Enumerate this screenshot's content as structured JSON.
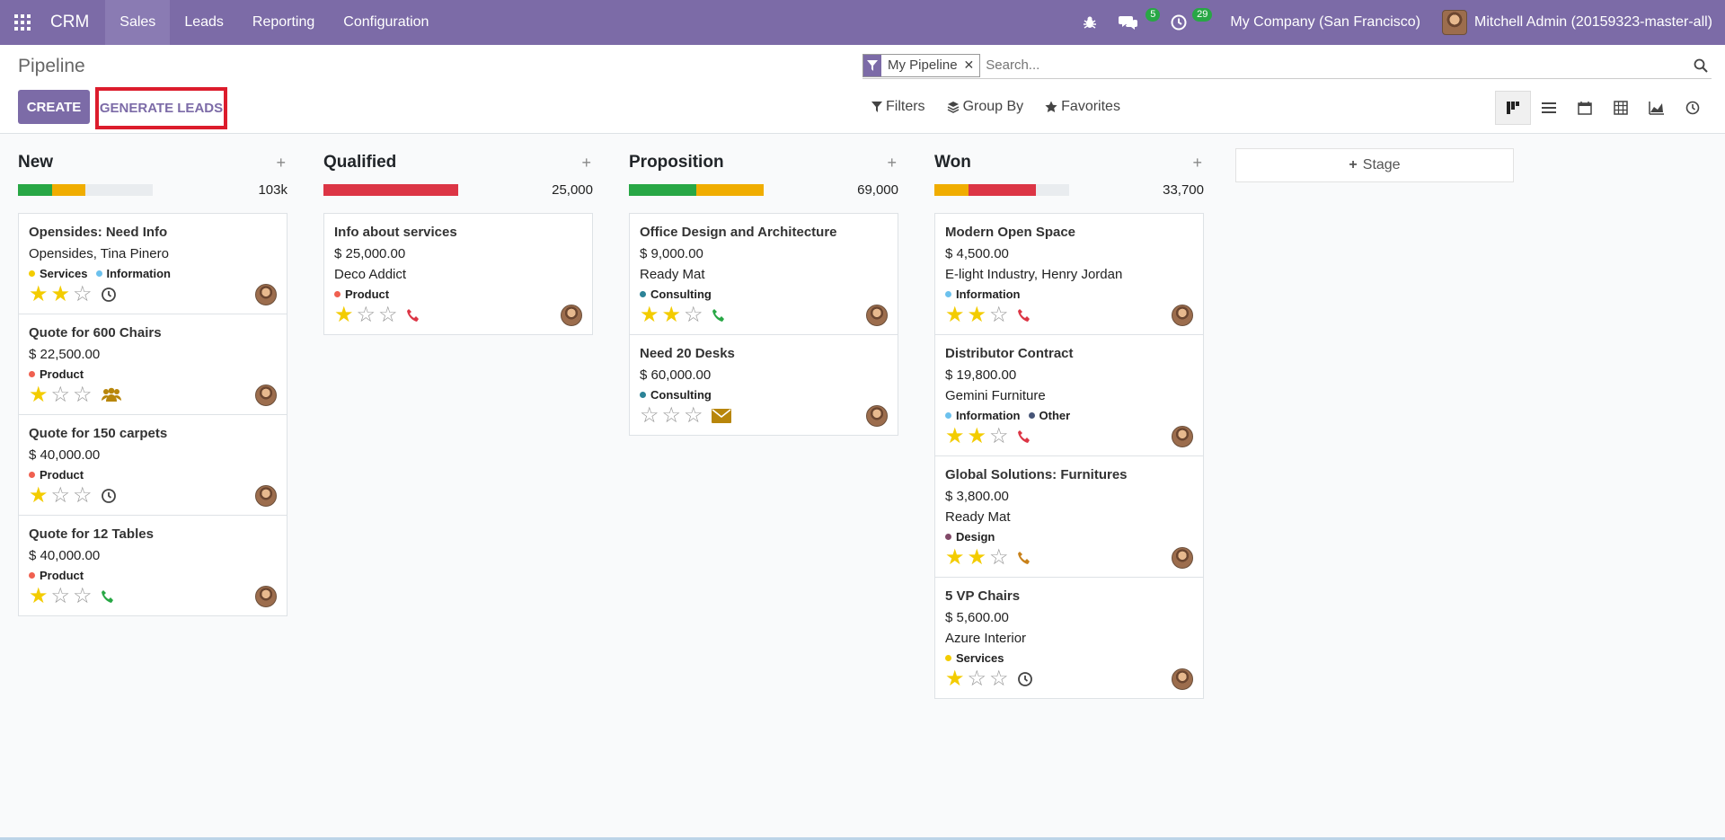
{
  "navbar": {
    "app_name": "CRM",
    "menu": [
      "Sales",
      "Leads",
      "Reporting",
      "Configuration"
    ],
    "messages_count": "5",
    "activities_count": "29",
    "company": "My Company (San Francisco)",
    "user": "Mitchell Admin (20159323-master-all)",
    "accent": "#7c6ba7"
  },
  "control": {
    "title": "Pipeline",
    "create_label": "CREATE",
    "generate_label": "GENERATE LEADS",
    "facet": "My Pipeline",
    "search_placeholder": "Search...",
    "filters_label": "Filters",
    "groupby_label": "Group By",
    "favorites_label": "Favorites"
  },
  "add_stage_label": "Stage",
  "columns": [
    {
      "name": "New",
      "total": "103k",
      "progress": [
        {
          "color": "#28a745",
          "pct": 25
        },
        {
          "color": "#f0ad00",
          "pct": 25
        }
      ],
      "cards": [
        {
          "title": "Opensides: Need Info",
          "lines": [
            "Opensides, Tina Pinero"
          ],
          "tags": [
            {
              "label": "Services",
              "color": "#f3cc00"
            },
            {
              "label": "Information",
              "color": "#6cc1ed"
            }
          ],
          "stars": 2,
          "activity": "clock"
        },
        {
          "title": "Quote for 600 Chairs",
          "lines": [
            "$ 22,500.00"
          ],
          "tags": [
            {
              "label": "Product",
              "color": "#f06050"
            }
          ],
          "stars": 1,
          "activity": "users"
        },
        {
          "title": "Quote for 150 carpets",
          "lines": [
            "$ 40,000.00"
          ],
          "tags": [
            {
              "label": "Product",
              "color": "#f06050"
            }
          ],
          "stars": 1,
          "activity": "clock"
        },
        {
          "title": "Quote for 12 Tables",
          "lines": [
            "$ 40,000.00"
          ],
          "tags": [
            {
              "label": "Product",
              "color": "#f06050"
            }
          ],
          "stars": 1,
          "activity": "phone-green"
        }
      ]
    },
    {
      "name": "Qualified",
      "total": "25,000",
      "progress": [
        {
          "color": "#dc3545",
          "pct": 100
        }
      ],
      "cards": [
        {
          "title": "Info about services",
          "lines": [
            "$ 25,000.00",
            "Deco Addict"
          ],
          "tags": [
            {
              "label": "Product",
              "color": "#f06050"
            }
          ],
          "stars": 1,
          "activity": "phone-red"
        }
      ]
    },
    {
      "name": "Proposition",
      "total": "69,000",
      "progress": [
        {
          "color": "#28a745",
          "pct": 50
        },
        {
          "color": "#f0ad00",
          "pct": 50
        }
      ],
      "cards": [
        {
          "title": "Office Design and Architecture",
          "lines": [
            "$ 9,000.00",
            "Ready Mat"
          ],
          "tags": [
            {
              "label": "Consulting",
              "color": "#2c8397"
            }
          ],
          "stars": 2,
          "activity": "phone-green"
        },
        {
          "title": "Need 20 Desks",
          "lines": [
            "$ 60,000.00"
          ],
          "tags": [
            {
              "label": "Consulting",
              "color": "#2c8397"
            }
          ],
          "stars": 0,
          "activity": "envelope"
        }
      ]
    },
    {
      "name": "Won",
      "total": "33,700",
      "progress": [
        {
          "color": "#f0ad00",
          "pct": 25
        },
        {
          "color": "#dc3545",
          "pct": 50
        }
      ],
      "cards": [
        {
          "title": "Modern Open Space",
          "lines": [
            "$ 4,500.00",
            "E-light Industry, Henry Jordan"
          ],
          "tags": [
            {
              "label": "Information",
              "color": "#6cc1ed"
            }
          ],
          "stars": 2,
          "activity": "phone-red"
        },
        {
          "title": "Distributor Contract",
          "lines": [
            "$ 19,800.00",
            "Gemini Furniture"
          ],
          "tags": [
            {
              "label": "Information",
              "color": "#6cc1ed"
            },
            {
              "label": "Other",
              "color": "#475577"
            }
          ],
          "stars": 2,
          "activity": "phone-red"
        },
        {
          "title": "Global Solutions: Furnitures",
          "lines": [
            "$ 3,800.00",
            "Ready Mat"
          ],
          "tags": [
            {
              "label": "Design",
              "color": "#814968"
            }
          ],
          "stars": 2,
          "activity": "phone-orange"
        },
        {
          "title": "5 VP Chairs",
          "lines": [
            "$ 5,600.00",
            "Azure Interior"
          ],
          "tags": [
            {
              "label": "Services",
              "color": "#f3cc00"
            }
          ],
          "stars": 1,
          "activity": "clock"
        }
      ]
    }
  ]
}
